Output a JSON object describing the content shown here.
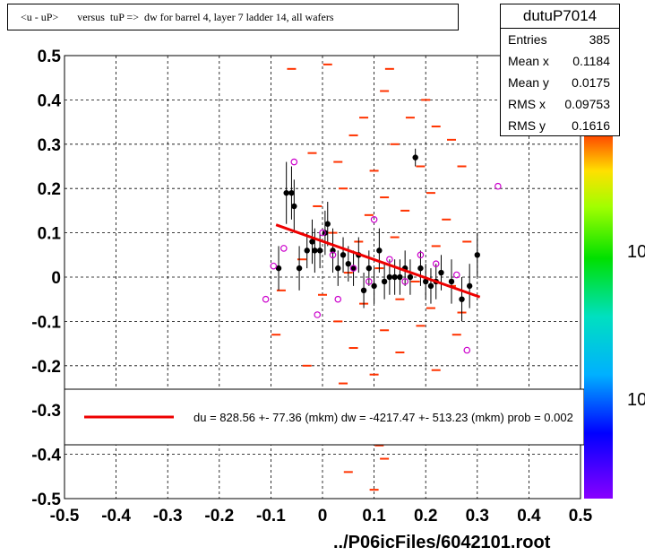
{
  "title": "<u - uP>       versus  tuP =>  dw for barrel 4, layer 7 ladder 14, all wafers",
  "stats": {
    "name": "dutuP7014",
    "rows": [
      {
        "label": "Entries",
        "value": "385"
      },
      {
        "label": "Mean x",
        "value": "0.1184"
      },
      {
        "label": "Mean y",
        "value": "0.0175"
      },
      {
        "label": "RMS x",
        "value": "0.09753"
      },
      {
        "label": "RMS y",
        "value": "0.1616"
      }
    ]
  },
  "footer": "../P06icFiles/6042101.root",
  "legend_text": "du =  828.56 +- 77.36 (mkm) dw = -4217.47 +- 513.23 (mkm) prob = 0.002",
  "palette_labels": [
    "10",
    "10"
  ],
  "colors": {
    "fit": "#ee0000",
    "points": "#000000",
    "open_markers": "#cc00cc",
    "histogram": "#ff3300"
  },
  "chart_data": {
    "type": "scatter",
    "xlim": [
      -0.5,
      0.5
    ],
    "ylim": [
      -0.5,
      0.5
    ],
    "xticks": [
      "-0.5",
      "-0.4",
      "-0.3",
      "-0.2",
      "-0.1",
      "0",
      "0.1",
      "0.2",
      "0.3",
      "0.4",
      "0.5"
    ],
    "yticks": [
      "-0.5",
      "-0.4",
      "-0.3",
      "-0.2",
      "-0.1",
      "0",
      "0.1",
      "0.2",
      "0.3",
      "0.4",
      "0.5"
    ],
    "grid": true,
    "fit_line": {
      "x": [
        -0.09,
        0.305
      ],
      "y": [
        0.118,
        -0.045
      ]
    },
    "profile_points": [
      {
        "x": -0.085,
        "y": 0.02,
        "e": 0.05
      },
      {
        "x": -0.07,
        "y": 0.19,
        "e": 0.07
      },
      {
        "x": -0.06,
        "y": 0.19,
        "e": 0.06
      },
      {
        "x": -0.055,
        "y": 0.16,
        "e": 0.06
      },
      {
        "x": -0.045,
        "y": 0.02,
        "e": 0.05
      },
      {
        "x": -0.03,
        "y": 0.06,
        "e": 0.04
      },
      {
        "x": -0.02,
        "y": 0.08,
        "e": 0.05
      },
      {
        "x": -0.015,
        "y": 0.06,
        "e": 0.05
      },
      {
        "x": -0.005,
        "y": 0.06,
        "e": 0.04
      },
      {
        "x": 0.005,
        "y": 0.1,
        "e": 0.05
      },
      {
        "x": 0.01,
        "y": 0.12,
        "e": 0.05
      },
      {
        "x": 0.02,
        "y": 0.06,
        "e": 0.05
      },
      {
        "x": 0.03,
        "y": 0.02,
        "e": 0.04
      },
      {
        "x": 0.04,
        "y": 0.05,
        "e": 0.04
      },
      {
        "x": 0.05,
        "y": 0.03,
        "e": 0.04
      },
      {
        "x": 0.06,
        "y": 0.02,
        "e": 0.04
      },
      {
        "x": 0.07,
        "y": 0.05,
        "e": 0.04
      },
      {
        "x": 0.08,
        "y": -0.03,
        "e": 0.04
      },
      {
        "x": 0.09,
        "y": 0.02,
        "e": 0.04
      },
      {
        "x": 0.1,
        "y": -0.02,
        "e": 0.04
      },
      {
        "x": 0.11,
        "y": 0.06,
        "e": 0.05
      },
      {
        "x": 0.12,
        "y": -0.01,
        "e": 0.04
      },
      {
        "x": 0.13,
        "y": 0.0,
        "e": 0.04
      },
      {
        "x": 0.14,
        "y": 0.0,
        "e": 0.04
      },
      {
        "x": 0.15,
        "y": 0.0,
        "e": 0.04
      },
      {
        "x": 0.16,
        "y": 0.02,
        "e": 0.04
      },
      {
        "x": 0.17,
        "y": 0.0,
        "e": 0.04
      },
      {
        "x": 0.18,
        "y": 0.27,
        "e": 0.02
      },
      {
        "x": 0.19,
        "y": 0.02,
        "e": 0.04
      },
      {
        "x": 0.2,
        "y": -0.01,
        "e": 0.04
      },
      {
        "x": 0.21,
        "y": -0.02,
        "e": 0.04
      },
      {
        "x": 0.22,
        "y": -0.01,
        "e": 0.04
      },
      {
        "x": 0.23,
        "y": 0.01,
        "e": 0.04
      },
      {
        "x": 0.25,
        "y": -0.01,
        "e": 0.05
      },
      {
        "x": 0.27,
        "y": -0.05,
        "e": 0.05
      },
      {
        "x": 0.285,
        "y": -0.02,
        "e": 0.05
      },
      {
        "x": 0.3,
        "y": 0.05,
        "e": 0.05
      }
    ],
    "open_points": [
      {
        "x": -0.11,
        "y": -0.05
      },
      {
        "x": -0.095,
        "y": 0.025
      },
      {
        "x": -0.075,
        "y": 0.065
      },
      {
        "x": -0.055,
        "y": 0.26
      },
      {
        "x": 0.0,
        "y": 0.1
      },
      {
        "x": 0.02,
        "y": 0.05
      },
      {
        "x": -0.01,
        "y": -0.085
      },
      {
        "x": 0.03,
        "y": -0.05
      },
      {
        "x": 0.06,
        "y": 0.02
      },
      {
        "x": 0.09,
        "y": -0.01
      },
      {
        "x": 0.1,
        "y": 0.13
      },
      {
        "x": 0.13,
        "y": 0.04
      },
      {
        "x": 0.16,
        "y": -0.01
      },
      {
        "x": 0.19,
        "y": 0.05
      },
      {
        "x": 0.22,
        "y": 0.03
      },
      {
        "x": 0.26,
        "y": 0.005
      },
      {
        "x": 0.28,
        "y": -0.165
      },
      {
        "x": 0.34,
        "y": 0.205
      }
    ],
    "histogram_dashes": [
      {
        "x": -0.06,
        "y": 0.47
      },
      {
        "x": 0.01,
        "y": 0.48
      },
      {
        "x": 0.13,
        "y": 0.47
      },
      {
        "x": 0.12,
        "y": 0.42
      },
      {
        "x": 0.2,
        "y": 0.4
      },
      {
        "x": 0.08,
        "y": 0.36
      },
      {
        "x": 0.17,
        "y": 0.36
      },
      {
        "x": 0.22,
        "y": 0.34
      },
      {
        "x": 0.06,
        "y": 0.32
      },
      {
        "x": 0.14,
        "y": 0.3
      },
      {
        "x": 0.25,
        "y": 0.31
      },
      {
        "x": -0.02,
        "y": 0.28
      },
      {
        "x": 0.03,
        "y": 0.26
      },
      {
        "x": 0.1,
        "y": 0.24
      },
      {
        "x": 0.19,
        "y": 0.25
      },
      {
        "x": 0.27,
        "y": 0.25
      },
      {
        "x": 0.04,
        "y": 0.2
      },
      {
        "x": 0.12,
        "y": 0.18
      },
      {
        "x": 0.21,
        "y": 0.19
      },
      {
        "x": -0.01,
        "y": 0.16
      },
      {
        "x": 0.09,
        "y": 0.14
      },
      {
        "x": 0.16,
        "y": 0.15
      },
      {
        "x": 0.24,
        "y": 0.13
      },
      {
        "x": 0.02,
        "y": 0.1
      },
      {
        "x": 0.07,
        "y": 0.08
      },
      {
        "x": 0.14,
        "y": 0.09
      },
      {
        "x": 0.22,
        "y": 0.07
      },
      {
        "x": 0.28,
        "y": 0.08
      },
      {
        "x": -0.04,
        "y": 0.04
      },
      {
        "x": 0.05,
        "y": 0.01
      },
      {
        "x": 0.11,
        "y": 0.02
      },
      {
        "x": 0.18,
        "y": -0.01
      },
      {
        "x": 0.25,
        "y": -0.02
      },
      {
        "x": -0.08,
        "y": -0.03
      },
      {
        "x": 0.0,
        "y": -0.04
      },
      {
        "x": 0.08,
        "y": -0.06
      },
      {
        "x": 0.15,
        "y": -0.05
      },
      {
        "x": 0.21,
        "y": -0.07
      },
      {
        "x": 0.27,
        "y": -0.08
      },
      {
        "x": -0.09,
        "y": -0.13
      },
      {
        "x": 0.03,
        "y": -0.1
      },
      {
        "x": 0.12,
        "y": -0.12
      },
      {
        "x": 0.19,
        "y": -0.11
      },
      {
        "x": 0.26,
        "y": -0.13
      },
      {
        "x": 0.06,
        "y": -0.16
      },
      {
        "x": 0.15,
        "y": -0.17
      },
      {
        "x": -0.03,
        "y": -0.2
      },
      {
        "x": 0.1,
        "y": -0.22
      },
      {
        "x": 0.22,
        "y": -0.21
      },
      {
        "x": 0.04,
        "y": -0.24
      },
      {
        "x": 0.11,
        "y": -0.38
      },
      {
        "x": 0.12,
        "y": -0.41
      },
      {
        "x": 0.05,
        "y": -0.44
      },
      {
        "x": 0.1,
        "y": -0.48
      }
    ]
  }
}
